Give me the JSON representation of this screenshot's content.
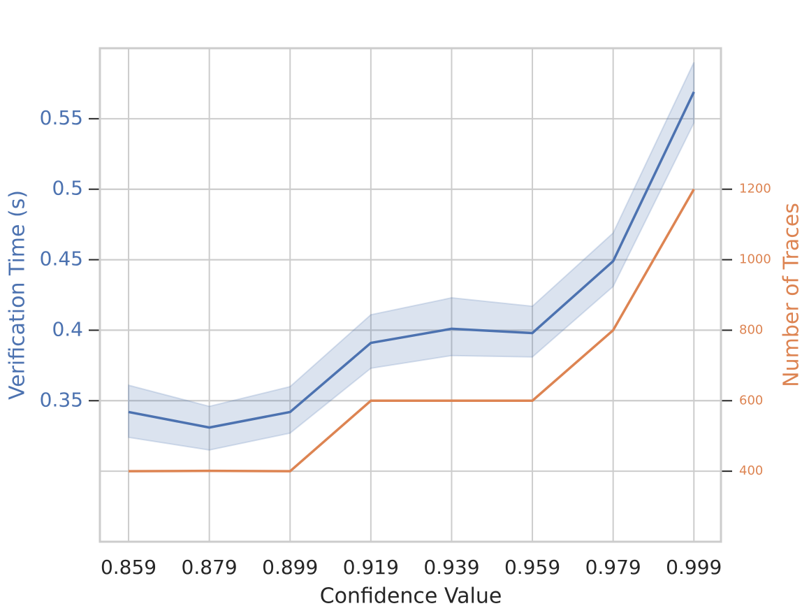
{
  "chart_data": {
    "type": "line",
    "xlabel": "Confidence Value",
    "ylabel": "Verification Time (s)",
    "y2label": "Number of Traces",
    "x": [
      0.859,
      0.879,
      0.899,
      0.919,
      0.939,
      0.959,
      0.979,
      0.999
    ],
    "series": [
      {
        "color": "#4c72b0",
        "values": [
          0.342,
          0.331,
          0.342,
          0.391,
          0.401,
          0.398,
          0.449,
          0.569
        ],
        "lower": [
          0.324,
          0.315,
          0.327,
          0.373,
          0.382,
          0.381,
          0.431,
          0.547
        ],
        "upper": [
          0.361,
          0.346,
          0.36,
          0.411,
          0.423,
          0.417,
          0.469,
          0.59
        ]
      },
      {
        "color": "#dd8452",
        "axis": "y2",
        "values": [
          400,
          401,
          400,
          600,
          600,
          600,
          800,
          1200
        ]
      }
    ],
    "xlim": [
      0.8519,
      1.0057
    ],
    "xticks": [
      0.859,
      0.879,
      0.899,
      0.919,
      0.939,
      0.959,
      0.979,
      0.999
    ],
    "ylim": [
      0.25,
      0.6
    ],
    "yticks": [
      0.35,
      0.4,
      0.45,
      0.5,
      0.55
    ],
    "y2lim": [
      200,
      1600
    ],
    "y2ticks": [
      400,
      600,
      800,
      1000,
      1200
    ],
    "grid": true
  }
}
